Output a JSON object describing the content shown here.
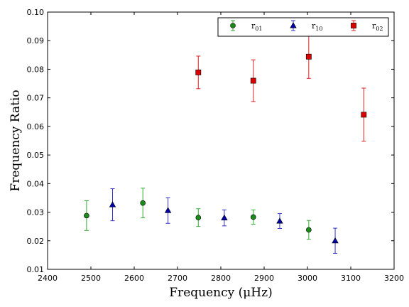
{
  "chart_data": {
    "type": "scatter",
    "xlabel": "Frequency  (μHz)",
    "ylabel": "Frequency Ratio",
    "xlim": [
      2400,
      3200
    ],
    "ylim": [
      0.01,
      0.1
    ],
    "xticks": [
      "2400",
      "2500",
      "2600",
      "2700",
      "2800",
      "2900",
      "3000",
      "3100",
      "3200"
    ],
    "yticks": [
      "0.01",
      "0.02",
      "0.03",
      "0.04",
      "0.05",
      "0.06",
      "0.07",
      "0.08",
      "0.09",
      "0.10"
    ],
    "grid": false,
    "legend_position": "top-right",
    "series": [
      {
        "name": "r01",
        "marker": "circle",
        "color": "#1a8c1a",
        "errorbar_color": "#33aa33",
        "points": [
          {
            "x": 2490,
            "y": 0.0288,
            "err": 0.0052
          },
          {
            "x": 2620,
            "y": 0.0332,
            "err": 0.0052
          },
          {
            "x": 2748,
            "y": 0.0281,
            "err": 0.0031
          },
          {
            "x": 2875,
            "y": 0.0283,
            "err": 0.0025
          },
          {
            "x": 3003,
            "y": 0.0238,
            "err": 0.0033
          }
        ]
      },
      {
        "name": "r10",
        "marker": "triangle",
        "color": "#0000aa",
        "errorbar_color": "#3333cc",
        "points": [
          {
            "x": 2550,
            "y": 0.0326,
            "err": 0.0056
          },
          {
            "x": 2678,
            "y": 0.0306,
            "err": 0.0045
          },
          {
            "x": 2808,
            "y": 0.028,
            "err": 0.0028
          },
          {
            "x": 2936,
            "y": 0.0269,
            "err": 0.0026
          },
          {
            "x": 3064,
            "y": 0.02,
            "err": 0.0044
          }
        ]
      },
      {
        "name": "r02",
        "marker": "square",
        "color": "#dd0000",
        "errorbar_color": "#dd2222",
        "points": [
          {
            "x": 2748,
            "y": 0.0789,
            "err": 0.0057
          },
          {
            "x": 2875,
            "y": 0.076,
            "err": 0.0073
          },
          {
            "x": 3003,
            "y": 0.0844,
            "err": 0.0076
          },
          {
            "x": 3130,
            "y": 0.0641,
            "err": 0.0093
          }
        ]
      }
    ],
    "legend": [
      {
        "label": "r",
        "sub": "01"
      },
      {
        "label": "r",
        "sub": "10"
      },
      {
        "label": "r",
        "sub": "02"
      }
    ]
  }
}
